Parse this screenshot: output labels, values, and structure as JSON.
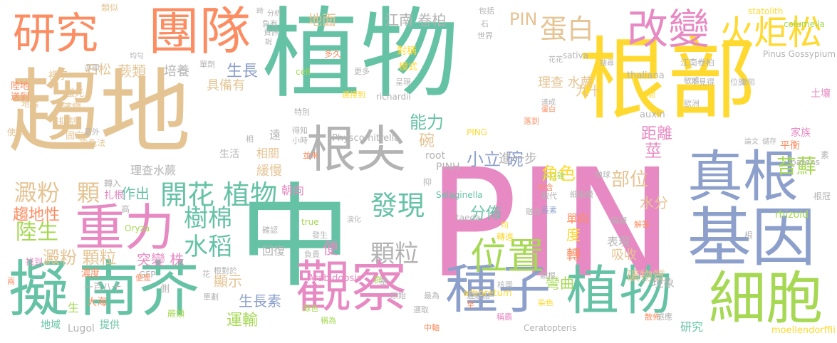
{
  "palette": {
    "green": "#66c2a5",
    "orange": "#fc8d62",
    "blue": "#8da0cb",
    "pink": "#e78ac3",
    "lime": "#a6d854",
    "yellow": "#ffd92f",
    "tan": "#e5c494",
    "gray": "#b3b3b3"
  },
  "words": [
    {
      "text": "植物",
      "color": "green"
    },
    {
      "text": "PIN",
      "color": "pink"
    },
    {
      "text": "趨地",
      "color": "tan"
    },
    {
      "text": "根部",
      "color": "yellow"
    },
    {
      "text": "中",
      "color": "green"
    },
    {
      "text": "研究",
      "color": "orange"
    },
    {
      "text": "團隊",
      "color": "orange"
    },
    {
      "text": "改變",
      "color": "pink"
    },
    {
      "text": "火炬松",
      "color": "yellow"
    },
    {
      "text": "根尖",
      "color": "gray"
    },
    {
      "text": "真根",
      "color": "blue"
    },
    {
      "text": "基因",
      "color": "blue"
    },
    {
      "text": "重力",
      "color": "pink"
    },
    {
      "text": "擬",
      "color": "green"
    },
    {
      "text": "南芥",
      "color": "green"
    },
    {
      "text": "觀察",
      "color": "pink"
    },
    {
      "text": "種子",
      "color": "blue"
    },
    {
      "text": "植物",
      "color": "green"
    },
    {
      "text": "細胞",
      "color": "lime"
    },
    {
      "text": "位置",
      "color": "lime"
    },
    {
      "text": "發現",
      "color": "green"
    },
    {
      "text": "顆粒",
      "color": "gray"
    },
    {
      "text": "開花 植物",
      "color": "green"
    },
    {
      "text": "樹棉",
      "color": "green"
    },
    {
      "text": "水稻",
      "color": "green"
    },
    {
      "text": "澱粉",
      "color": "tan"
    },
    {
      "text": "顆",
      "color": "tan"
    },
    {
      "text": "陸生",
      "color": "lime"
    },
    {
      "text": "澱粉 顆粒",
      "color": "tan"
    },
    {
      "text": "蛋白",
      "color": "tan"
    },
    {
      "text": "PIN",
      "color": "tan"
    },
    {
      "text": "江南 卷柏",
      "color": "gray"
    },
    {
      "text": "地面",
      "color": "tan"
    },
    {
      "text": "蕨類",
      "color": "tan"
    },
    {
      "text": "石松",
      "color": "tan"
    },
    {
      "text": "培養",
      "color": "gray"
    },
    {
      "text": "生長",
      "color": "blue"
    },
    {
      "text": "具備有",
      "color": "tan"
    },
    {
      "text": "理查 水蕨",
      "color": "tan"
    },
    {
      "text": "九十",
      "color": "tan"
    },
    {
      "text": "能力",
      "color": "green"
    },
    {
      "text": "碗",
      "color": "tan"
    },
    {
      "text": "小立 碗",
      "color": "blue"
    },
    {
      "text": "進一步",
      "color": "gray"
    },
    {
      "text": "角色",
      "color": "yellow"
    },
    {
      "text": "部位",
      "color": "tan"
    },
    {
      "text": "莖",
      "color": "pink"
    },
    {
      "text": "距離",
      "color": "pink"
    },
    {
      "text": "苔蘚",
      "color": "lime"
    },
    {
      "text": "分佈",
      "color": "green"
    },
    {
      "text": "度",
      "color": "yellow"
    },
    {
      "text": "轉",
      "color": "orange"
    },
    {
      "text": "水分",
      "color": "tan"
    },
    {
      "text": "吸收",
      "color": "tan"
    },
    {
      "text": "趨地性",
      "color": "orange"
    },
    {
      "text": "作出",
      "color": "green"
    },
    {
      "text": "突變 株",
      "color": "pink"
    },
    {
      "text": "顯示",
      "color": "tan"
    },
    {
      "text": "運輸",
      "color": "lime"
    },
    {
      "text": "生長素",
      "color": "blue"
    },
    {
      "text": "緩慢",
      "color": "tan"
    },
    {
      "text": "相關",
      "color": "tan"
    },
    {
      "text": "朝向",
      "color": "pink"
    },
    {
      "text": "遠",
      "color": "gray"
    },
    {
      "text": "便",
      "color": "pink"
    },
    {
      "text": "回復",
      "color": "gray"
    },
    {
      "text": "表現",
      "color": "gray"
    },
    {
      "text": "彎曲",
      "color": "lime"
    },
    {
      "text": "礦物質",
      "color": "tan"
    },
    {
      "text": "現象",
      "color": "gray"
    },
    {
      "text": "研究",
      "color": "green"
    },
    {
      "text": "單向",
      "color": "orange"
    },
    {
      "text": "理查水蕨",
      "color": "gray"
    },
    {
      "text": "生活",
      "color": "gray"
    },
    {
      "text": "地域",
      "color": "green"
    },
    {
      "text": "提供",
      "color": "green"
    },
    {
      "text": "一百八十",
      "color": "gray"
    },
    {
      "text": "生",
      "color": "lime"
    },
    {
      "text": "大海",
      "color": "orange"
    },
    {
      "text": "Lugol",
      "color": "gray"
    },
    {
      "text": "扎根",
      "color": "pink"
    },
    {
      "text": "高",
      "color": "gray"
    },
    {
      "text": "轉入",
      "color": "gray"
    },
    {
      "text": "Oryza",
      "color": "lime"
    },
    {
      "text": "找到",
      "color": "pink"
    },
    {
      "text": "濃度",
      "color": "orange"
    },
    {
      "text": "GFP",
      "color": "gray"
    },
    {
      "text": "側",
      "color": "gray"
    },
    {
      "text": "蕨類",
      "color": "lime"
    },
    {
      "text": "root",
      "color": "gray"
    },
    {
      "text": "PINH",
      "color": "gray"
    },
    {
      "text": "Physcomitrella",
      "color": "gray"
    },
    {
      "text": "Selaginella",
      "color": "green"
    },
    {
      "text": "taeda",
      "color": "gray"
    },
    {
      "text": "Arabidopsis",
      "color": "pink"
    },
    {
      "text": "arboretum",
      "color": "yellow"
    },
    {
      "text": "Ceratopteris",
      "color": "gray"
    },
    {
      "text": "richardii",
      "color": "gray"
    },
    {
      "text": "thaliana",
      "color": "gray"
    },
    {
      "text": "auxin",
      "color": "gray"
    },
    {
      "text": "patens",
      "color": "gray"
    },
    {
      "text": "rhizoid",
      "color": "lime"
    },
    {
      "text": "moellendorffii",
      "color": "yellow"
    },
    {
      "text": "statolith",
      "color": "yellow"
    },
    {
      "text": "columella",
      "color": "lime"
    },
    {
      "text": "sativa",
      "color": "gray"
    },
    {
      "text": "Pinus Gossypium",
      "color": "gray"
    },
    {
      "text": "true",
      "color": "lime"
    },
    {
      "text": "cell",
      "color": "lime"
    },
    {
      "text": "PING",
      "color": "yellow"
    },
    {
      "text": "江南卷柏",
      "color": "gray"
    },
    {
      "text": "家族",
      "color": "pink"
    },
    {
      "text": "土壤",
      "color": "pink"
    },
    {
      "text": "平衡",
      "color": "orange"
    },
    {
      "text": "根冠",
      "color": "gray"
    },
    {
      "text": "素",
      "color": "gray"
    },
    {
      "text": "根",
      "color": "gray"
    },
    {
      "text": "陸地",
      "color": "orange"
    },
    {
      "text": "送到",
      "color": "orange"
    },
    {
      "text": "裸子",
      "color": "tan"
    },
    {
      "text": "螢光",
      "color": "tan"
    },
    {
      "text": "濱變",
      "color": "tan"
    },
    {
      "text": "抑制",
      "color": "tan"
    },
    {
      "text": "固定",
      "color": "tan"
    },
    {
      "text": "使命",
      "color": "tan"
    },
    {
      "text": "地端",
      "color": "tan"
    },
    {
      "text": "染色法",
      "color": "tan"
    },
    {
      "text": "意外",
      "color": "gray"
    },
    {
      "text": "單劑",
      "color": "gray"
    },
    {
      "text": "類似",
      "color": "tan"
    },
    {
      "text": "亦即",
      "color": "gray"
    },
    {
      "text": "均勻",
      "color": "gray"
    },
    {
      "text": "分析",
      "color": "gray"
    },
    {
      "text": "資訊",
      "color": "gray"
    },
    {
      "text": "負有",
      "color": "gray"
    },
    {
      "text": "時",
      "color": "gray"
    },
    {
      "text": "說",
      "color": "gray"
    },
    {
      "text": "多久",
      "color": "orange"
    },
    {
      "text": "包括",
      "color": "gray"
    },
    {
      "text": "世界",
      "color": "gray"
    },
    {
      "text": "石",
      "color": "gray"
    },
    {
      "text": "對稱",
      "color": "yellow"
    },
    {
      "text": "模式",
      "color": "yellow"
    },
    {
      "text": "更多",
      "color": "gray"
    },
    {
      "text": "呈現",
      "color": "gray"
    },
    {
      "text": "選擇到",
      "color": "yellow"
    },
    {
      "text": "特別",
      "color": "gray"
    },
    {
      "text": "得知",
      "color": "gray"
    },
    {
      "text": "小時",
      "color": "gray"
    },
    {
      "text": "並未",
      "color": "orange"
    },
    {
      "text": "抑",
      "color": "gray"
    },
    {
      "text": "負責",
      "color": "gray"
    },
    {
      "text": "發生",
      "color": "gray"
    },
    {
      "text": "確認",
      "color": "gray"
    },
    {
      "text": "演化",
      "color": "gray"
    },
    {
      "text": "群",
      "color": "lime"
    },
    {
      "text": "基",
      "color": "gray"
    },
    {
      "text": "綠色",
      "color": "lime"
    },
    {
      "text": "稱為",
      "color": "lime"
    },
    {
      "text": "原始",
      "color": "gray"
    },
    {
      "text": "最為",
      "color": "gray"
    },
    {
      "text": "選取",
      "color": "gray"
    },
    {
      "text": "中軸",
      "color": "orange"
    },
    {
      "text": "染色",
      "color": "yellow"
    },
    {
      "text": "至",
      "color": "orange"
    },
    {
      "text": "遞送出",
      "color": "gray"
    },
    {
      "text": "稱霸",
      "color": "pink"
    },
    {
      "text": "類根",
      "color": "gray"
    },
    {
      "text": "核蛋",
      "color": "gray"
    },
    {
      "text": "轉進",
      "color": "yellow"
    },
    {
      "text": "均",
      "color": "yellow"
    },
    {
      "text": "長素",
      "color": "blue"
    },
    {
      "text": "融合",
      "color": "gray"
    },
    {
      "text": "中含",
      "color": "orange"
    },
    {
      "text": "取代",
      "color": "gray"
    },
    {
      "text": "細胞膜",
      "color": "gray"
    },
    {
      "text": "小立碗",
      "color": "lime"
    },
    {
      "text": "地球",
      "color": "gray"
    },
    {
      "text": "障礙",
      "color": "gray"
    },
    {
      "text": "解答",
      "color": "orange"
    },
    {
      "text": "散佈",
      "color": "orange"
    },
    {
      "text": "感應",
      "color": "gray"
    },
    {
      "text": "花花",
      "color": "gray"
    },
    {
      "text": "搜尋",
      "color": "gray"
    },
    {
      "text": "達成",
      "color": "gray"
    },
    {
      "text": "蛋白",
      "color": "orange"
    },
    {
      "text": "時間",
      "color": "yellow"
    },
    {
      "text": "位於",
      "color": "gray"
    },
    {
      "text": "敏感",
      "color": "gray"
    },
    {
      "text": "歐洲",
      "color": "gray"
    },
    {
      "text": "變阻",
      "color": "gray"
    },
    {
      "text": "不見得",
      "color": "gray"
    },
    {
      "text": "儲存",
      "color": "gray"
    },
    {
      "text": "論文",
      "color": "gray"
    },
    {
      "text": "落到",
      "color": "orange"
    },
    {
      "text": "單劃",
      "color": "gray"
    },
    {
      "text": "花",
      "color": "gray"
    },
    {
      "text": "根對於",
      "color": "gray"
    },
    {
      "text": "便是",
      "color": "orange"
    },
    {
      "text": "兩",
      "color": "orange"
    },
    {
      "text": "相",
      "color": "gray"
    }
  ]
}
